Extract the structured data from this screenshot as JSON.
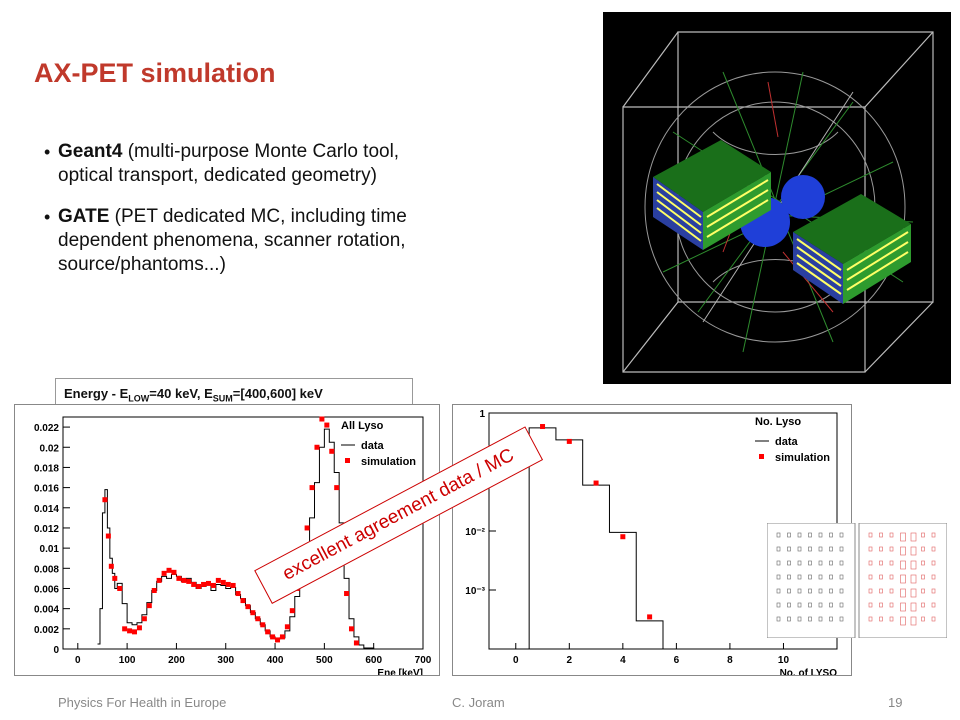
{
  "slide": {
    "title": "AX-PET simulation",
    "bullets": [
      {
        "head": "Geant4",
        "rest": " (multi-purpose Monte Carlo  tool, optical transport, dedicated geometry)"
      },
      {
        "head": "GATE",
        "rest": " (PET dedicated MC, including time dependent phenomena, scanner rotation, source/phantoms...)"
      }
    ],
    "energy_caption": {
      "prefix": "Energy - E",
      "sub1": "LOW",
      "mid": "=40 keV, E",
      "sub2": "SUM",
      "suffix": "=[400,600] keV"
    },
    "stamp": "excellent agreement data / MC",
    "footer": {
      "left": "Physics For Health in Europe",
      "center": "C. Joram",
      "page": "19"
    }
  },
  "chart_data": [
    {
      "type": "line",
      "title": "All Lyso",
      "xlabel": "Ene [keV]",
      "ylabel": "",
      "xlim": [
        -30,
        700
      ],
      "ylim": [
        0,
        0.023
      ],
      "xticks": [
        "0",
        "100",
        "200",
        "300",
        "400",
        "500",
        "600",
        "700"
      ],
      "yticks": [
        "0",
        "0.002",
        "0.004",
        "0.006",
        "0.008",
        "0.01",
        "0.012",
        "0.014",
        "0.016",
        "0.018",
        "0.02",
        "0.022"
      ],
      "legend": "top-right",
      "series": [
        {
          "name": "data",
          "style": "step",
          "color": "#000000",
          "x": [
            40,
            45,
            50,
            55,
            60,
            65,
            70,
            75,
            80,
            90,
            100,
            110,
            120,
            130,
            140,
            150,
            160,
            170,
            180,
            190,
            200,
            210,
            220,
            230,
            240,
            250,
            260,
            270,
            280,
            290,
            300,
            310,
            320,
            330,
            340,
            350,
            360,
            370,
            380,
            390,
            400,
            410,
            420,
            430,
            440,
            450,
            460,
            470,
            480,
            490,
            500,
            510,
            520,
            530,
            540,
            550,
            560,
            570,
            580,
            600,
            650
          ],
          "y": [
            0.0005,
            0.004,
            0.0135,
            0.0158,
            0.012,
            0.009,
            0.0075,
            0.006,
            0.0065,
            0.0045,
            0.0026,
            0.0024,
            0.0026,
            0.0034,
            0.0046,
            0.0058,
            0.0067,
            0.0072,
            0.007,
            0.0074,
            0.0072,
            0.0067,
            0.007,
            0.0066,
            0.006,
            0.0062,
            0.0064,
            0.0058,
            0.0064,
            0.0063,
            0.006,
            0.0061,
            0.0054,
            0.005,
            0.0043,
            0.0036,
            0.003,
            0.0024,
            0.0018,
            0.0012,
            0.001,
            0.0011,
            0.0018,
            0.0032,
            0.0052,
            0.0075,
            0.01,
            0.013,
            0.0165,
            0.02,
            0.0218,
            0.0205,
            0.0175,
            0.0125,
            0.007,
            0.003,
            0.0012,
            0.0004,
            0.0001,
            0.0,
            0.0
          ]
        },
        {
          "name": "simulation",
          "style": "markers",
          "color": "#ff0000",
          "x": [
            55,
            62,
            68,
            75,
            85,
            95,
            105,
            115,
            125,
            135,
            145,
            155,
            165,
            175,
            185,
            195,
            205,
            215,
            225,
            235,
            245,
            255,
            265,
            275,
            285,
            295,
            305,
            315,
            325,
            335,
            345,
            355,
            365,
            375,
            385,
            395,
            405,
            415,
            425,
            435,
            445,
            455,
            465,
            475,
            485,
            495,
            505,
            515,
            525,
            535,
            545,
            555,
            565
          ],
          "y": [
            0.0148,
            0.0112,
            0.0082,
            0.007,
            0.006,
            0.002,
            0.0018,
            0.0017,
            0.0021,
            0.003,
            0.0043,
            0.0058,
            0.0068,
            0.0075,
            0.0078,
            0.0076,
            0.007,
            0.0068,
            0.0067,
            0.0064,
            0.0062,
            0.0064,
            0.0065,
            0.0063,
            0.0068,
            0.0066,
            0.0064,
            0.0063,
            0.0055,
            0.0048,
            0.0042,
            0.0036,
            0.003,
            0.0024,
            0.0017,
            0.0012,
            0.0009,
            0.0012,
            0.0022,
            0.0038,
            0.006,
            0.0088,
            0.012,
            0.016,
            0.02,
            0.0228,
            0.0222,
            0.0196,
            0.016,
            0.011,
            0.0055,
            0.002,
            0.0006
          ]
        }
      ]
    },
    {
      "type": "line",
      "title": "No. Lyso",
      "xlabel": "No. of LYSO",
      "ylabel": "",
      "xlim": [
        -1,
        12
      ],
      "ylim": [
        0.0001,
        1
      ],
      "log_y": true,
      "xticks": [
        "0",
        "2",
        "4",
        "6",
        "8",
        "10"
      ],
      "yticks": [
        "1",
        "10⁻¹",
        "10⁻²",
        "10⁻³"
      ],
      "legend": "top-right",
      "series": [
        {
          "name": "data",
          "style": "step",
          "color": "#000000",
          "x": [
            1,
            2,
            3,
            4,
            5
          ],
          "y": [
            0.56,
            0.35,
            0.06,
            0.0095,
            0.0003
          ]
        },
        {
          "name": "simulation",
          "style": "markers",
          "color": "#ff0000",
          "x": [
            1,
            2,
            3,
            4,
            5
          ],
          "y": [
            0.59,
            0.33,
            0.065,
            0.008,
            0.00035
          ]
        }
      ]
    }
  ]
}
